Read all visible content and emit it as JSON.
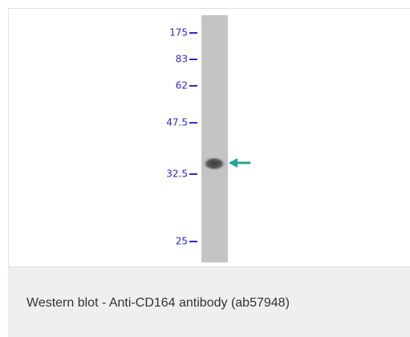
{
  "figure": {
    "markers": [
      "175",
      "83",
      "62",
      "47.5",
      "32.5",
      "25"
    ]
  },
  "caption": "Western blot - Anti-CD164 antibody (ab57948)"
}
